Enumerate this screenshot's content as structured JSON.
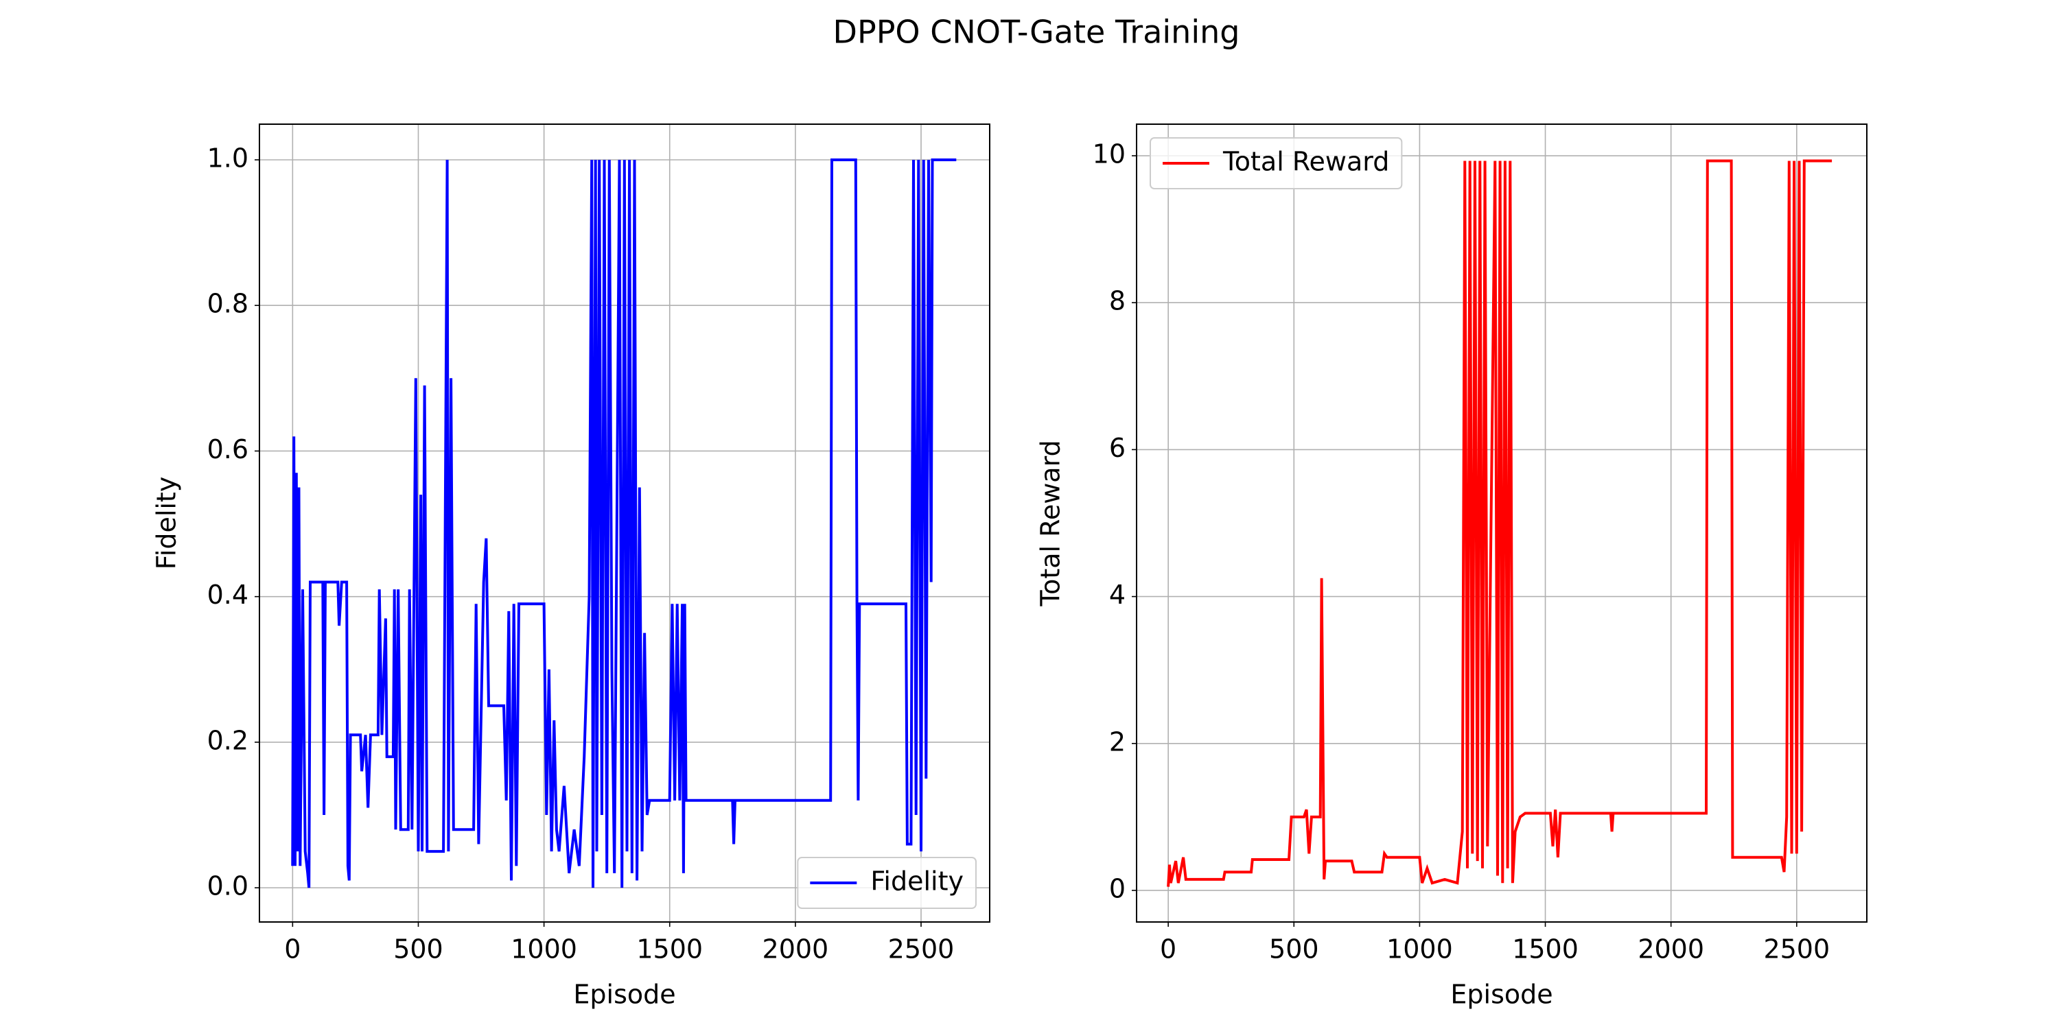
{
  "title": "DPPO CNOT-Gate Training",
  "chart_data": [
    {
      "type": "line",
      "xlabel": "Episode",
      "ylabel": "Fidelity",
      "grid": true,
      "legend": "lower right",
      "xlim": [
        -132,
        2773
      ],
      "ylim": [
        -0.047,
        1.049
      ],
      "xticks": [
        0,
        500,
        1000,
        1500,
        2000,
        2500
      ],
      "yticks": [
        {
          "value": 0,
          "label": "0.0"
        },
        0.2,
        0.4,
        0.6,
        0.8,
        {
          "value": 1,
          "label": "1.0"
        }
      ],
      "x": [
        0,
        5,
        10,
        15,
        20,
        25,
        30,
        40,
        50,
        60,
        65,
        70,
        120,
        125,
        130,
        180,
        185,
        195,
        215,
        220,
        225,
        230,
        270,
        275,
        290,
        300,
        310,
        340,
        345,
        355,
        370,
        375,
        400,
        405,
        410,
        420,
        430,
        460,
        465,
        475,
        490,
        500,
        510,
        515,
        525,
        535,
        600,
        615,
        620,
        630,
        640,
        720,
        730,
        740,
        760,
        770,
        780,
        840,
        850,
        860,
        870,
        880,
        890,
        900,
        1000,
        1010,
        1020,
        1030,
        1040,
        1050,
        1060,
        1080,
        1100,
        1120,
        1140,
        1160,
        1180,
        1190,
        1195,
        1205,
        1210,
        1220,
        1230,
        1240,
        1250,
        1260,
        1270,
        1280,
        1300,
        1310,
        1320,
        1330,
        1340,
        1350,
        1360,
        1370,
        1380,
        1390,
        1400,
        1410,
        1420,
        1500,
        1510,
        1520,
        1530,
        1540,
        1550,
        1555,
        1560,
        1565,
        1750,
        1755,
        1760,
        2140,
        2145,
        2240,
        2245,
        2250,
        2255,
        2440,
        2445,
        2460,
        2470,
        2480,
        2490,
        2500,
        2510,
        2520,
        2530,
        2540,
        2545,
        2640
      ],
      "series": [
        {
          "name": "Fidelity",
          "color": "#0000ff",
          "values": [
            0.03,
            0.62,
            0.03,
            0.57,
            0.05,
            0.55,
            0.03,
            0.41,
            0.05,
            0.02,
            0.0,
            0.42,
            0.42,
            0.1,
            0.42,
            0.42,
            0.36,
            0.42,
            0.42,
            0.03,
            0.01,
            0.21,
            0.21,
            0.16,
            0.21,
            0.11,
            0.21,
            0.21,
            0.41,
            0.21,
            0.37,
            0.18,
            0.18,
            0.41,
            0.08,
            0.41,
            0.08,
            0.08,
            0.41,
            0.08,
            0.7,
            0.05,
            0.54,
            0.05,
            0.69,
            0.05,
            0.05,
            1.0,
            0.05,
            0.7,
            0.08,
            0.08,
            0.39,
            0.06,
            0.42,
            0.48,
            0.25,
            0.25,
            0.12,
            0.38,
            0.01,
            0.39,
            0.03,
            0.39,
            0.39,
            0.1,
            0.3,
            0.05,
            0.23,
            0.08,
            0.05,
            0.14,
            0.02,
            0.08,
            0.03,
            0.18,
            0.4,
            1.0,
            0.0,
            1.0,
            0.05,
            1.0,
            0.1,
            1.0,
            0.02,
            1.0,
            0.3,
            0.02,
            1.0,
            0.0,
            1.0,
            0.05,
            1.0,
            0.02,
            1.0,
            0.01,
            0.55,
            0.05,
            0.35,
            0.1,
            0.12,
            0.12,
            0.39,
            0.12,
            0.39,
            0.12,
            0.39,
            0.02,
            0.39,
            0.12,
            0.12,
            0.06,
            0.12,
            0.12,
            1.0,
            1.0,
            0.39,
            0.12,
            0.39,
            0.39,
            0.06,
            0.06,
            1.0,
            0.1,
            1.0,
            0.05,
            1.0,
            0.15,
            1.0,
            0.42,
            1.0,
            1.0
          ]
        }
      ]
    },
    {
      "type": "line",
      "xlabel": "Episode",
      "ylabel": "Total Reward",
      "grid": true,
      "legend": "upper left",
      "xlim": [
        -126,
        2779
      ],
      "ylim": [
        -0.43,
        10.43
      ],
      "xticks": [
        0,
        500,
        1000,
        1500,
        2000,
        2500
      ],
      "yticks": [
        0,
        2,
        4,
        6,
        8,
        10
      ],
      "x": [
        0,
        5,
        10,
        30,
        40,
        60,
        70,
        220,
        225,
        330,
        335,
        480,
        490,
        540,
        550,
        560,
        570,
        605,
        610,
        620,
        625,
        730,
        740,
        850,
        860,
        870,
        1000,
        1010,
        1030,
        1050,
        1100,
        1150,
        1170,
        1180,
        1190,
        1200,
        1210,
        1220,
        1230,
        1240,
        1250,
        1260,
        1270,
        1300,
        1310,
        1320,
        1330,
        1340,
        1350,
        1360,
        1370,
        1380,
        1400,
        1420,
        1520,
        1530,
        1540,
        1550,
        1560,
        1760,
        1765,
        1770,
        2140,
        2145,
        2240,
        2245,
        2440,
        2450,
        2460,
        2470,
        2480,
        2490,
        2500,
        2510,
        2520,
        2530,
        2640
      ],
      "series": [
        {
          "name": "Total Reward",
          "color": "#ff0000",
          "values": [
            0.05,
            0.35,
            0.1,
            0.4,
            0.1,
            0.45,
            0.15,
            0.15,
            0.25,
            0.25,
            0.42,
            0.42,
            1.0,
            1.0,
            1.1,
            0.5,
            1.0,
            1.0,
            4.25,
            0.15,
            0.4,
            0.4,
            0.25,
            0.25,
            0.5,
            0.45,
            0.45,
            0.1,
            0.3,
            0.1,
            0.15,
            0.1,
            0.8,
            9.93,
            0.3,
            9.93,
            0.5,
            9.93,
            0.4,
            9.93,
            0.3,
            9.93,
            0.6,
            9.93,
            0.2,
            9.93,
            0.1,
            9.93,
            0.3,
            9.93,
            0.1,
            0.8,
            1.0,
            1.05,
            1.05,
            0.6,
            1.1,
            0.45,
            1.05,
            1.05,
            0.8,
            1.05,
            1.05,
            9.93,
            9.93,
            0.45,
            0.45,
            0.25,
            1.0,
            9.93,
            0.5,
            9.93,
            0.5,
            9.93,
            0.8,
            9.93,
            9.93
          ]
        }
      ]
    }
  ]
}
